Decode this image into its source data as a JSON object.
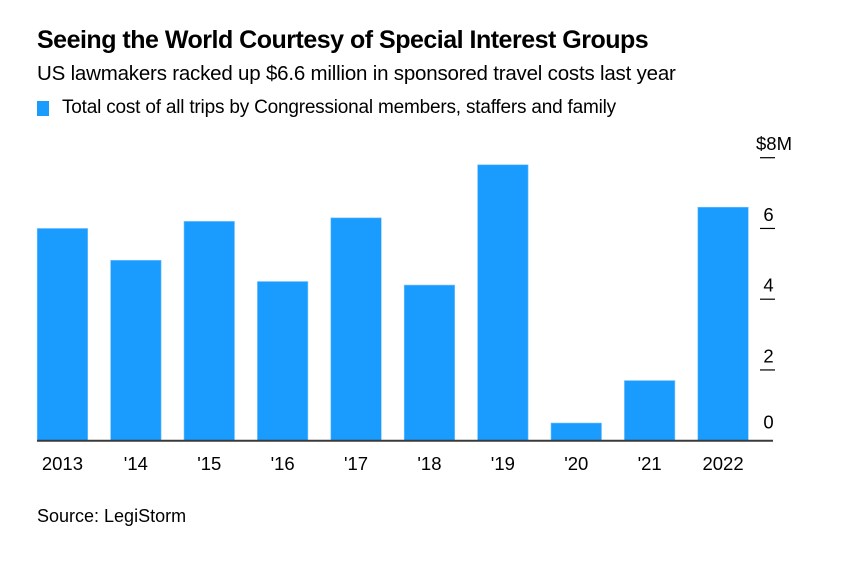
{
  "header": {
    "title": "Seeing the World Courtesy of Special Interest Groups",
    "subtitle": "US lawmakers racked up $6.6 million in sponsored travel costs last year"
  },
  "legend": {
    "label": "Total cost of all trips by Congressional members, staffers and family",
    "color": "#1a9cff"
  },
  "footer": {
    "source": "Source: LegiStorm"
  },
  "chart_data": {
    "type": "bar",
    "title": "Seeing the World Courtesy of Special Interest Groups",
    "subtitle": "US lawmakers racked up $6.6 million in sponsored travel costs last year",
    "xlabel": "",
    "ylabel": "",
    "categories": [
      "2013",
      "'14",
      "'15",
      "'16",
      "'17",
      "'18",
      "'19",
      "'20",
      "'21",
      "2022"
    ],
    "series": [
      {
        "name": "Total cost of all trips by Congressional members, staffers and family",
        "color": "#1a9cff",
        "values": [
          6.0,
          5.1,
          6.2,
          4.5,
          6.3,
          4.4,
          7.8,
          0.5,
          1.7,
          6.6
        ]
      }
    ],
    "units": "$ millions",
    "ylim": [
      0,
      8
    ],
    "yticks": [
      0,
      2,
      4,
      6,
      8
    ],
    "ytick_labels": [
      "0",
      "2",
      "4",
      "6",
      "$8M"
    ],
    "y_axis_side": "right",
    "grid": false,
    "legend_position": "top-left",
    "baseline_color": "#3a3a3a",
    "source": "Source: LegiStorm"
  }
}
